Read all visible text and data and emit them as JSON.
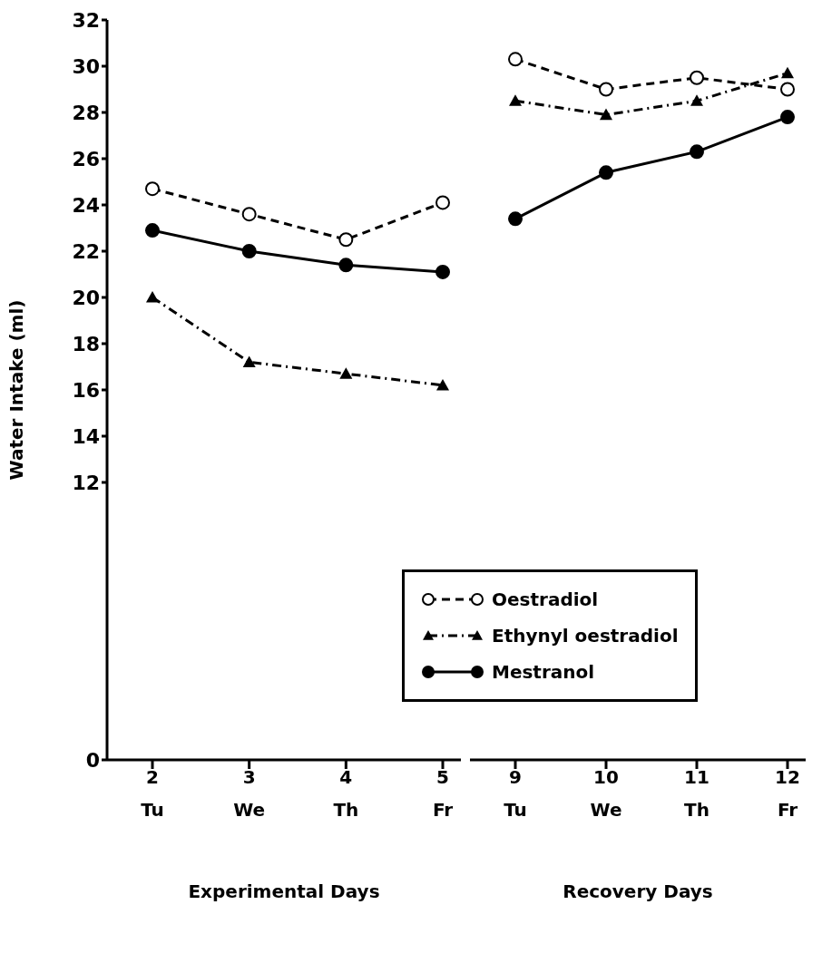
{
  "chart_data": [
    {
      "type": "line",
      "xlabel": "Experimental Days",
      "ylabel": "Water Intake (ml)",
      "categories": [
        "2\nTu",
        "3\nWe",
        "4\nTh",
        "5\nFr"
      ],
      "ylim": [
        0,
        32
      ],
      "yticks": [
        0,
        12,
        14,
        16,
        18,
        20,
        22,
        24,
        26,
        28,
        30,
        32
      ],
      "grid": false,
      "legend": false,
      "series": [
        {
          "color": "#000000",
          "line_style": "dashed",
          "marker": "circle",
          "values": [
            24.7,
            23.6,
            22.5,
            24.1
          ]
        },
        {
          "color": "#000000",
          "line_style": "dashdot",
          "marker": "triangle",
          "values": [
            20.0,
            17.2,
            16.7,
            16.2
          ]
        },
        {
          "color": "#000000",
          "line_style": "solid",
          "marker": "circle",
          "values": [
            22.9,
            22.0,
            21.4,
            21.1
          ]
        }
      ]
    },
    {
      "type": "line",
      "xlabel": "Recovery Days",
      "categories": [
        "9\nTu",
        "10\nWe",
        "11\nTh",
        "12\nFr"
      ],
      "ylim": [
        0,
        32
      ],
      "yticks": [
        0,
        12,
        14,
        16,
        18,
        20,
        22,
        24,
        26,
        28,
        30,
        32
      ],
      "tick_labels": "x",
      "grid": false,
      "legend": "bottom left",
      "series": [
        {
          "name": "Oestradiol",
          "color": "#000000",
          "line_style": "dashed",
          "marker": "circle",
          "values": [
            30.3,
            29.0,
            29.5,
            29.0
          ]
        },
        {
          "name": "Ethynyl oestradiol",
          "color": "#000000",
          "line_style": "dashdot",
          "marker": "triangle",
          "values": [
            28.5,
            27.9,
            28.5,
            29.7
          ]
        },
        {
          "name": "Mestranol",
          "color": "#000000",
          "line_style": "solid",
          "marker": "circle",
          "values": [
            23.4,
            25.4,
            26.3,
            27.8
          ]
        }
      ]
    }
  ]
}
